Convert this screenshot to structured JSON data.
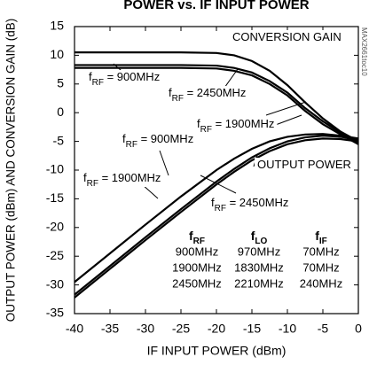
{
  "chart_data": {
    "type": "line",
    "title": "POWER vs. IF INPUT POWER",
    "xlabel": "IF INPUT POWER (dBm)",
    "ylabel": "OUTPUT POWER (dBm) AND CONVERSION GAIN (dB)",
    "side_note": "MAX2661toc10",
    "xlim": [
      -40,
      0
    ],
    "ylim": [
      -35,
      15
    ],
    "xticks": [
      -40,
      -35,
      -30,
      -25,
      -20,
      -15,
      -10,
      -5,
      0
    ],
    "yticks": [
      -35,
      -30,
      -25,
      -20,
      -15,
      -10,
      -5,
      0,
      5,
      10,
      15
    ],
    "grid": false,
    "x": [
      -40,
      -35,
      -30,
      -25,
      -20,
      -17.5,
      -15,
      -12.5,
      -10,
      -7.5,
      -5,
      -2.5,
      0
    ],
    "series": [
      {
        "color": "#000000",
        "values": [
          10.5,
          10.5,
          10.5,
          10.5,
          10.4,
          10.0,
          9.0,
          7.3,
          4.8,
          1.8,
          -1.0,
          -3.3,
          -5.0
        ]
      },
      {
        "color": "#000000",
        "values": [
          8.3,
          8.3,
          8.3,
          8.3,
          8.2,
          7.8,
          7.0,
          5.5,
          3.5,
          0.8,
          -1.5,
          -3.5,
          -5.2
        ]
      },
      {
        "color": "#000000",
        "values": [
          7.8,
          7.8,
          7.8,
          7.8,
          7.7,
          7.3,
          6.5,
          5.0,
          3.0,
          0.3,
          -2.0,
          -3.8,
          -5.5
        ]
      },
      {
        "color": "#000000",
        "values": [
          -29.5,
          -24.5,
          -19.5,
          -14.6,
          -10.0,
          -8.0,
          -6.3,
          -5.0,
          -4.2,
          -3.8,
          -3.7,
          -4.0,
          -4.5
        ]
      },
      {
        "color": "#000000",
        "values": [
          -31.7,
          -26.7,
          -21.7,
          -16.8,
          -12.0,
          -9.8,
          -7.8,
          -6.2,
          -5.0,
          -4.3,
          -4.0,
          -4.2,
          -4.7
        ]
      },
      {
        "color": "#000000",
        "values": [
          -32.2,
          -27.2,
          -22.2,
          -17.3,
          -12.5,
          -10.3,
          -8.3,
          -6.7,
          -5.5,
          -4.8,
          -4.5,
          -4.6,
          -5.0
        ]
      }
    ],
    "annotations": [
      {
        "text": "CONVERSION GAIN"
      },
      {
        "text": "f",
        "sub": "RF",
        "after": " = 900MHz"
      },
      {
        "text": "f",
        "sub": "RF",
        "after": " = 2450MHz"
      },
      {
        "text": "f",
        "sub": "RF",
        "after": " = 1900MHz"
      },
      {
        "text": "f",
        "sub": "RF",
        "after": " = 900MHz"
      },
      {
        "text": "OUTPUT POWER"
      },
      {
        "text": "f",
        "sub": "RF",
        "after": " = 1900MHz"
      },
      {
        "text": "f",
        "sub": "RF",
        "after": " = 2450MHz"
      }
    ],
    "table": {
      "header": [
        {
          "text": "f",
          "sub": "RF"
        },
        {
          "text": "f",
          "sub": "LO"
        },
        {
          "text": "f",
          "sub": "IF"
        }
      ],
      "rows": [
        [
          "900MHz",
          "970MHz",
          "70MHz"
        ],
        [
          "1900MHz",
          "1830MHz",
          "70MHz"
        ],
        [
          "2450MHz",
          "2210MHz",
          "240MHz"
        ]
      ]
    }
  }
}
